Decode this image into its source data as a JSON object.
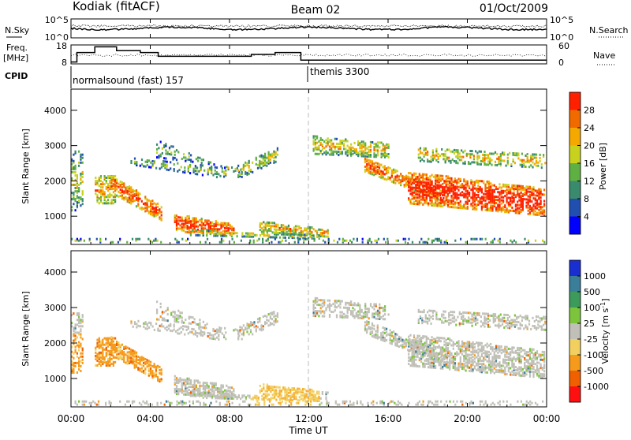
{
  "header": {
    "station": "Kodiak (fitACF)",
    "beam": "Beam 02",
    "date": "01/Oct/2009"
  },
  "summary_panels": {
    "nsky_label": "N.Sky",
    "nsky_ticks": [
      "10^5",
      "10^0"
    ],
    "nsearch_label": "N.Search",
    "nsearch_ticks": [
      "10^5",
      "10^0"
    ],
    "freq_label": "Freq.",
    "freq_unit": "[MHz]",
    "freq_ticks": [
      "18",
      "8"
    ],
    "nave_label": "Nave",
    "nave_ticks": [
      "60",
      "0"
    ],
    "cpid_label": "CPID",
    "cpid_segments": [
      {
        "label": "normalsound (fast) 157",
        "start_hour": 0
      },
      {
        "label": "themis 3300",
        "start_hour": 12
      }
    ],
    "freq_steps": [
      {
        "t0": 0.0,
        "t1": 0.3,
        "mhz": 9
      },
      {
        "t0": 0.3,
        "t1": 1.2,
        "mhz": 14
      },
      {
        "t0": 1.2,
        "t1": 2.3,
        "mhz": 17
      },
      {
        "t0": 2.3,
        "t1": 3.5,
        "mhz": 15
      },
      {
        "t0": 3.5,
        "t1": 4.4,
        "mhz": 14
      },
      {
        "t0": 4.4,
        "t1": 9.1,
        "mhz": 12
      },
      {
        "t0": 9.1,
        "t1": 10.3,
        "mhz": 13
      },
      {
        "t0": 10.3,
        "t1": 11.6,
        "mhz": 14
      },
      {
        "t0": 11.6,
        "t1": 24.0,
        "mhz": 10
      }
    ]
  },
  "chart_data": [
    {
      "type": "heatmap",
      "name": "power",
      "ylabel": "Slant Range [km]",
      "ylim": [
        200,
        4600
      ],
      "xlim": [
        0,
        24
      ],
      "yticks": [
        "1000",
        "2000",
        "3000",
        "4000"
      ],
      "colorbar_label": "Power [dB]",
      "colorbar_ticks": [
        "4",
        "8",
        "12",
        "16",
        "20",
        "24",
        "28"
      ],
      "colorbar_colors": [
        "#0000ff",
        "#204fb0",
        "#3a8a6e",
        "#5fb043",
        "#c8d21e",
        "#f5a800",
        "#f06a00",
        "#ff2000"
      ],
      "colorbar_range": [
        0,
        32
      ]
    },
    {
      "type": "heatmap",
      "name": "velocity",
      "ylabel": "Slant Range [km]",
      "ylim": [
        200,
        4600
      ],
      "xlim": [
        0,
        24
      ],
      "yticks": [
        "1000",
        "2000",
        "3000",
        "4000"
      ],
      "colorbar_label": "Velocity [m s^-1]",
      "colorbar_ticks": [
        "1000",
        "500",
        "100",
        "25",
        "-25",
        "-100",
        "-500",
        "-1000"
      ],
      "colorbar_colors": [
        "#1a2fd0",
        "#3a7e9a",
        "#3c9a5a",
        "#7cc43c",
        "#c0c0b8",
        "#f2d060",
        "#f59a1a",
        "#f06000",
        "#ff1010"
      ]
    }
  ],
  "xaxis": {
    "ticks": [
      "00:00",
      "04:00",
      "08:00",
      "12:00",
      "16:00",
      "20:00",
      "00:00"
    ],
    "label": "Time UT"
  }
}
